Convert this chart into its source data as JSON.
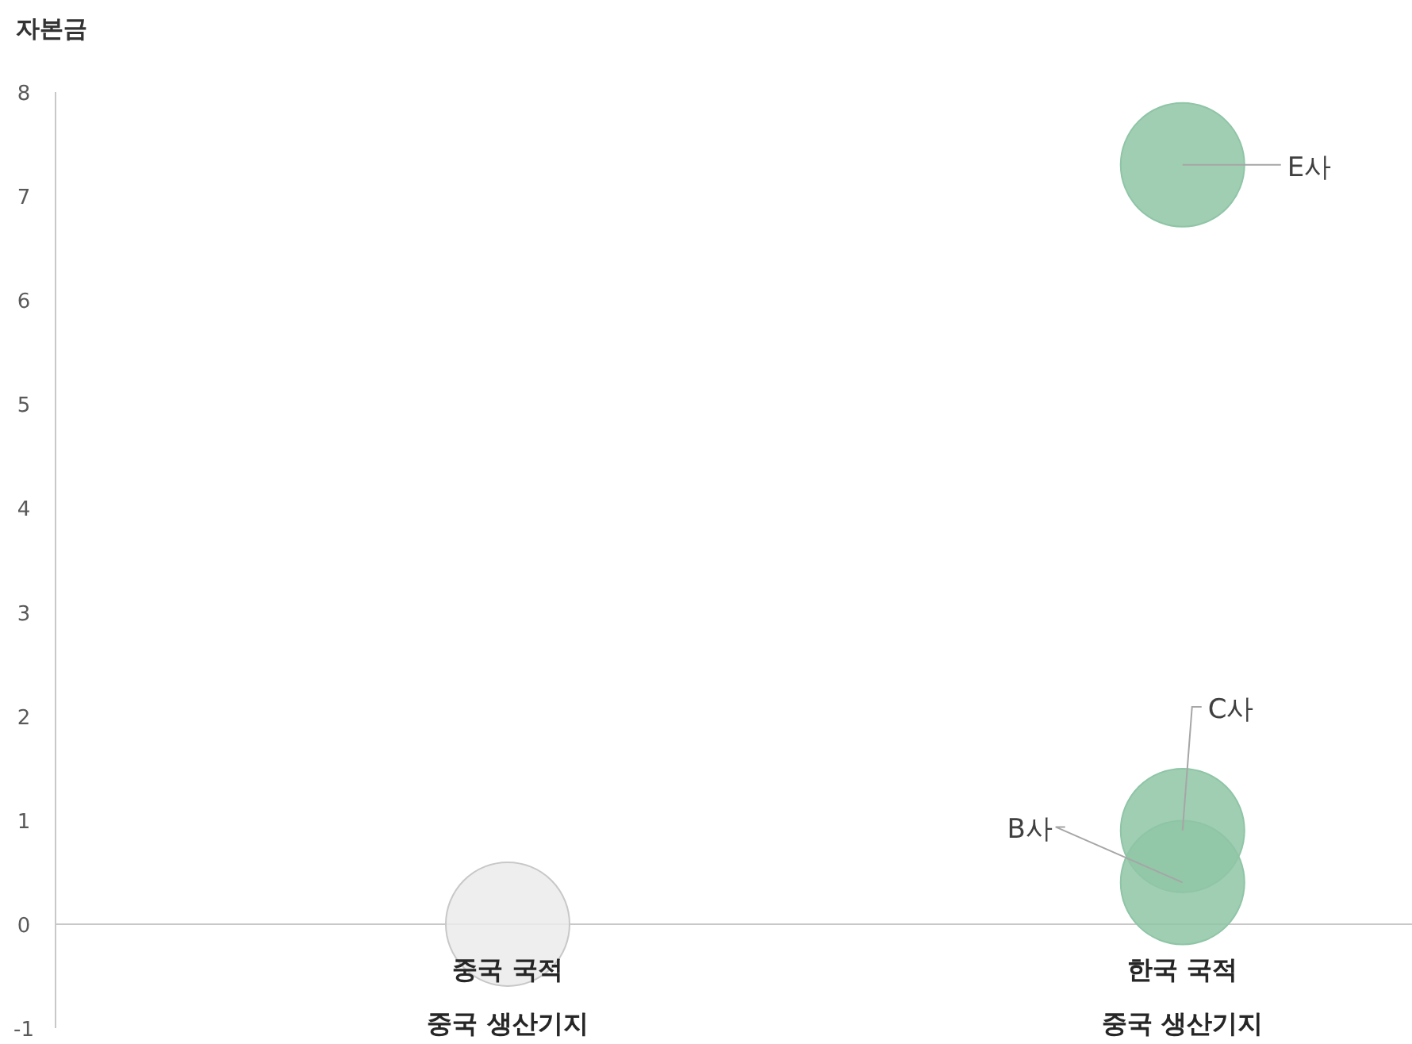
{
  "chart_data": {
    "type": "bubble",
    "ylabel": "자본금",
    "categories": [
      "중국 국적\n중국 생산기지",
      "한국 국적\n중국 생산기지"
    ],
    "ylim": [
      -1,
      8
    ],
    "yticks": [
      -1,
      0,
      1,
      2,
      3,
      4,
      5,
      6,
      7,
      8
    ],
    "grid": false,
    "series": [
      {
        "color": "#ebebeb",
        "values": [
          0,
          null
        ],
        "sizes": [
          1,
          null
        ]
      },
      {
        "name": "E사",
        "color": "#8fc5a6",
        "values": [
          null,
          7.3
        ],
        "sizes": [
          null,
          1
        ]
      },
      {
        "name": "C사",
        "color": "#8fc5a6",
        "values": [
          null,
          0.9
        ],
        "sizes": [
          null,
          1
        ]
      },
      {
        "name": "B사",
        "color": "#8fc5a6",
        "values": [
          null,
          0.4
        ],
        "sizes": [
          null,
          1
        ]
      }
    ]
  }
}
